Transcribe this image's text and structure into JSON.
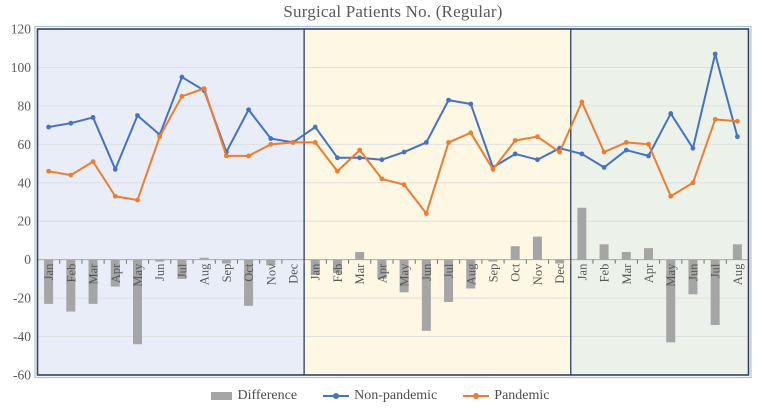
{
  "title": "Surgical Patients No. (Regular)",
  "legend": {
    "difference": "Difference",
    "non_pandemic": "Non-pandemic",
    "pandemic": "Pandemic"
  },
  "colors": {
    "difference": "#A5A5A5",
    "non_pandemic": "#4472C4",
    "pandemic": "#ED7D31",
    "period_backgrounds": [
      "#E9EDF7",
      "#FDF7E4",
      "#ECF1E9"
    ],
    "divider": "#3A4B6E",
    "plot_border": "#33425C",
    "outer_border": "#AFC0DB",
    "gridline": "#DCDCDC",
    "text": "#595959"
  },
  "chart_data": {
    "type": "bar",
    "subtype": "combo-bar-and-two-lines",
    "title": "Surgical Patients No. (Regular)",
    "xlabel": "",
    "ylabel": "",
    "ylim": [
      -60,
      120
    ],
    "yticks": [
      120,
      100,
      80,
      60,
      40,
      20,
      0,
      -20,
      -40,
      -60
    ],
    "grid": true,
    "legend_position": "bottom",
    "categories": [
      "Jan",
      "Feb",
      "Mar",
      "Apr",
      "May",
      "Jun",
      "Jul",
      "Aug",
      "Sep",
      "Oct",
      "Nov",
      "Dec",
      "Jan",
      "Feb",
      "Mar",
      "Apr",
      "May",
      "Jun",
      "Jul",
      "Aug",
      "Sep",
      "Oct",
      "Nov",
      "Dec",
      "Jan",
      "Feb",
      "Mar",
      "Apr",
      "May",
      "Jun",
      "Jul",
      "Aug"
    ],
    "periods": [
      {
        "start": 0,
        "count": 12,
        "bg": "#E9EDF7"
      },
      {
        "start": 12,
        "count": 12,
        "bg": "#FDF7E4"
      },
      {
        "start": 24,
        "count": 8,
        "bg": "#ECF1E9"
      }
    ],
    "series": [
      {
        "name": "Difference",
        "type": "bar",
        "color": "#A5A5A5",
        "values": [
          -23,
          -27,
          -23,
          -14,
          -44,
          -1,
          -10,
          1,
          -2,
          -24,
          -3,
          0,
          -8,
          -7,
          4,
          -10,
          -17,
          -37,
          -22,
          -15,
          -1,
          7,
          12,
          -2,
          27,
          8,
          4,
          6,
          -43,
          -18,
          -34,
          8
        ]
      },
      {
        "name": "Non-pandemic",
        "type": "line",
        "color": "#4472C4",
        "values": [
          69,
          71,
          74,
          47,
          75,
          65,
          95,
          88,
          56,
          78,
          63,
          61,
          69,
          53,
          53,
          52,
          56,
          61,
          83,
          81,
          48,
          55,
          52,
          58,
          55,
          48,
          57,
          54,
          76,
          58,
          107,
          64
        ]
      },
      {
        "name": "Pandemic",
        "type": "line",
        "color": "#ED7D31",
        "values": [
          46,
          44,
          51,
          33,
          31,
          64,
          85,
          89,
          54,
          54,
          60,
          61,
          61,
          46,
          57,
          42,
          39,
          24,
          61,
          66,
          47,
          62,
          64,
          56,
          82,
          56,
          61,
          60,
          33,
          40,
          73,
          72
        ]
      }
    ]
  }
}
